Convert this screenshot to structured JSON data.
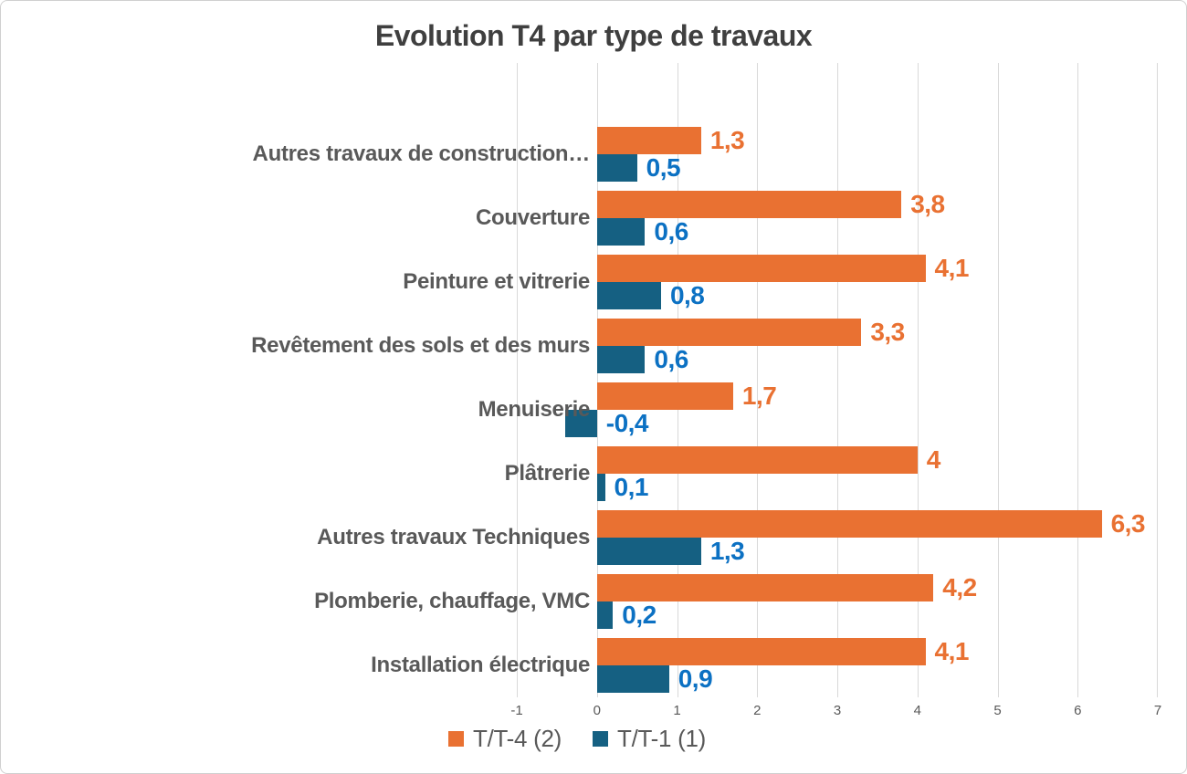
{
  "chart_data": {
    "type": "bar",
    "orientation": "horizontal",
    "title": "Evolution T4 par type de travaux",
    "categories": [
      "Autres travaux de construction…",
      "Couverture",
      "Peinture et vitrerie",
      "Revêtement des sols et des murs",
      "Menuiserie",
      "Plâtrerie",
      "Autres travaux Techniques",
      "Plomberie, chauffage, VMC",
      "Installation électrique"
    ],
    "series": [
      {
        "name": "T/T-4 (2)",
        "color": "#E97132",
        "label_color": "#E97132",
        "values": [
          1.3,
          3.8,
          4.1,
          3.3,
          1.7,
          4,
          6.3,
          4.2,
          4.1
        ],
        "labels": [
          "1,3",
          "3,8",
          "4,1",
          "3,3",
          "1,7",
          "4",
          "6,3",
          "4,2",
          "4,1"
        ]
      },
      {
        "name": "T/T-1 (1)",
        "color": "#156082",
        "label_color": "#0C71C3",
        "values": [
          0.5,
          0.6,
          0.8,
          0.6,
          -0.4,
          0.1,
          1.3,
          0.2,
          0.9
        ],
        "labels": [
          "0,5",
          "0,6",
          "0,8",
          "0,6",
          "-0,4",
          "0,1",
          "1,3",
          "0,2",
          "0,9"
        ]
      }
    ],
    "x_tick_labels": [
      "-1",
      "0",
      "1",
      "2",
      "3",
      "4",
      "5",
      "6",
      "7"
    ],
    "x_tick_values": [
      -1,
      0,
      1,
      2,
      3,
      4,
      5,
      6,
      7
    ],
    "xlim": [
      -1,
      7
    ],
    "grid": true,
    "legend_position": "bottom"
  },
  "colors": {
    "background": "#FFFFFF",
    "border": "#D0D0D0",
    "gridline": "#D9D9D9",
    "title_text": "#3F3F3F",
    "axis_text": "#595959"
  }
}
